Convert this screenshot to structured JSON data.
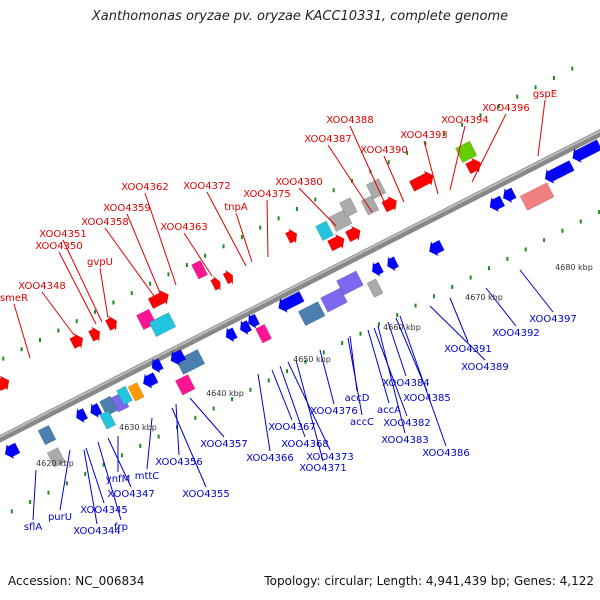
{
  "title": "Xanthomonas oryzae pv. oryzae KACC10331, complete genome",
  "footer": {
    "accession": "Accession: NC_006834",
    "stats": "Topology: circular; Length: 4,941,439 bp; Genes: 4,122"
  },
  "colors": {
    "backbone": "#777777",
    "label_top": "#e00000",
    "label_bottom": "#0000cc",
    "tick": "#228822",
    "gene_forward": "#ff0000",
    "gene_reverse": "#0000ff",
    "gene_magenta": "#ff1493",
    "gene_cyan": "#22c5dd",
    "gene_steelblue": "#4a7fb0",
    "gene_violet": "#7b68ee",
    "gene_grey": "#aaaaaa",
    "gene_orange": "#ff9900",
    "gene_green": "#66cc00",
    "gene_pink": "#f08080"
  },
  "scale_labels": [
    "4620 kbp",
    "4630 kbp",
    "4640 kbp",
    "4650 kbp",
    "4660 kbp",
    "4670 kbp",
    "4680 kbp"
  ],
  "top_labels": [
    "smeR",
    "XOO4348",
    "XOO4350",
    "XOO4351",
    "gvpU",
    "XOO4358",
    "XOO4359",
    "XOO4362",
    "XOO4363",
    "XOO4372",
    "tnpA",
    "XOO4375",
    "XOO4380",
    "XOO4387",
    "XOO4388",
    "XOO4390",
    "XOO4393",
    "XOO4394",
    "XOO4396",
    "gspE"
  ],
  "bottom_labels": [
    "sflA",
    "purU",
    "XOO4344",
    "XOO4345",
    "frp",
    "XOO4347",
    "ynfM",
    "mttC",
    "XOO4355",
    "XOO4356",
    "XOO4357",
    "XOO4366",
    "XOO4367",
    "XOO4368",
    "XOO4373",
    "XOO4371",
    "XOO4376",
    "accC",
    "accD",
    "accA",
    "XOO4382",
    "XOO4383",
    "XOO4384",
    "XOO4385",
    "XOO4386",
    "XOO4389",
    "XOO4391",
    "XOO4392",
    "XOO4397"
  ]
}
